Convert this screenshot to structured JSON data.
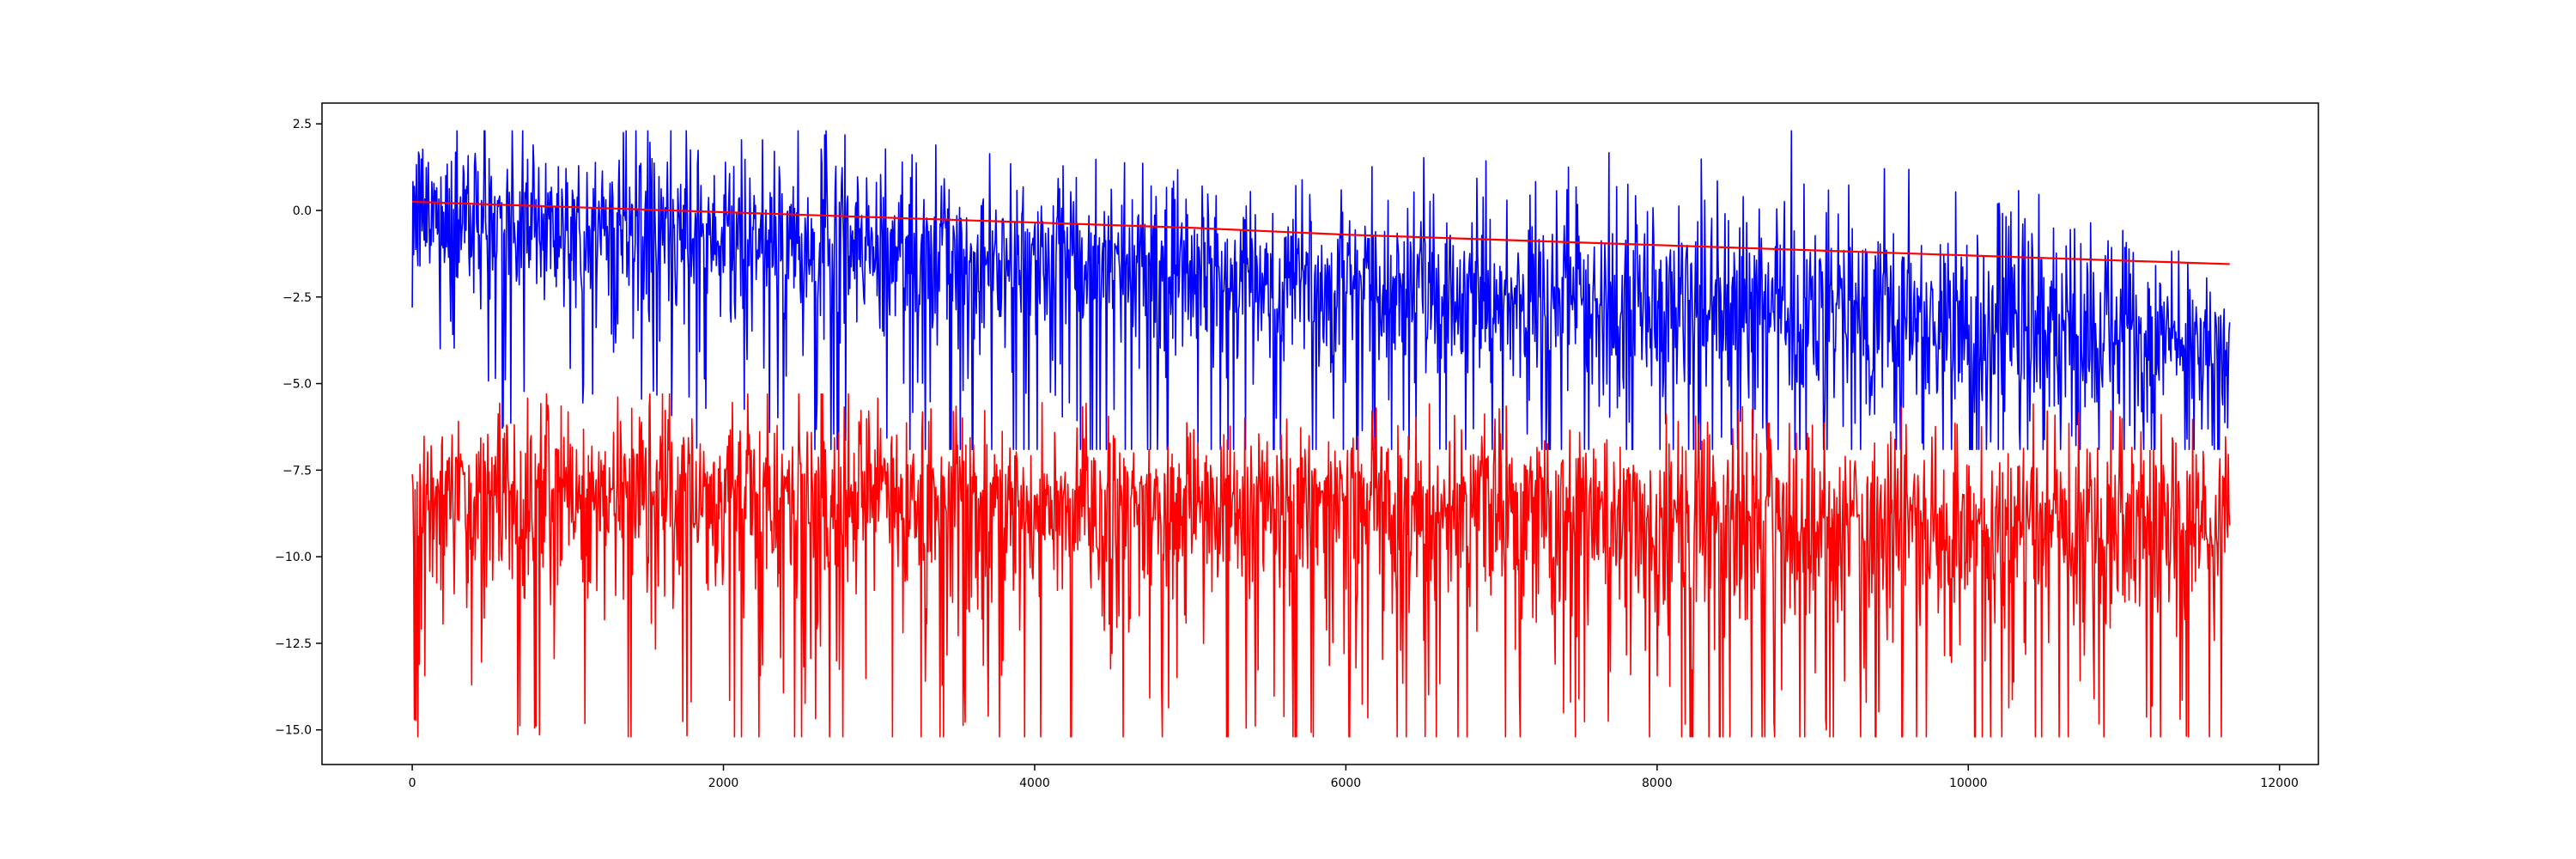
{
  "chart_data": {
    "type": "line",
    "title": "",
    "xlabel": "",
    "ylabel": "",
    "xlim": [
      -580,
      12250
    ],
    "ylim": [
      -16.0,
      3.1
    ],
    "grid": false,
    "legend": "none",
    "xticks": [
      0,
      2000,
      4000,
      6000,
      8000,
      10000,
      12000
    ],
    "xtick_labels": [
      "0",
      "2000",
      "4000",
      "6000",
      "8000",
      "10000",
      "12000"
    ],
    "yticks": [
      2.5,
      0.0,
      -2.5,
      -5.0,
      -7.5,
      -10.0,
      -12.5,
      -15.0
    ],
    "ytick_labels": [
      "2.5",
      "0.0",
      "−2.5",
      "−5.0",
      "−7.5",
      "−10.0",
      "−12.5",
      "−15.0"
    ],
    "series": [
      {
        "color": "#0000ff",
        "style": "noisy",
        "x_range": [
          0,
          11680
        ],
        "approx_mean": [
          [
            0,
            0.0
          ],
          [
            2000,
            -0.8
          ],
          [
            4000,
            -1.4
          ],
          [
            6000,
            -2.1
          ],
          [
            8000,
            -2.8
          ],
          [
            10000,
            -3.3
          ],
          [
            11680,
            -3.7
          ]
        ],
        "approx_band": [
          [
            0,
            -2.5,
            2.3
          ],
          [
            2000,
            -3.5,
            1.9
          ],
          [
            4000,
            -4.8,
            0.7
          ],
          [
            6000,
            -5.4,
            0.5
          ],
          [
            8000,
            -6.0,
            0.3
          ],
          [
            10000,
            -6.3,
            0.0
          ],
          [
            11680,
            -7.0,
            -2.2
          ]
        ],
        "approx_min": -6.9,
        "approx_max": 2.3
      },
      {
        "color": "#ff0000",
        "style": "noisy",
        "x_range": [
          0,
          11680
        ],
        "approx_mean": [
          [
            0,
            -8.3
          ],
          [
            2000,
            -8.1
          ],
          [
            4000,
            -8.6
          ],
          [
            6000,
            -8.4
          ],
          [
            8000,
            -8.9
          ],
          [
            10000,
            -9.1
          ],
          [
            11680,
            -8.9
          ]
        ],
        "approx_band": [
          [
            0,
            -11.5,
            -6.2
          ],
          [
            2000,
            -12.0,
            -5.4
          ],
          [
            4000,
            -12.5,
            -6.4
          ],
          [
            6000,
            -12.2,
            -6.3
          ],
          [
            8000,
            -12.8,
            -6.5
          ],
          [
            10000,
            -13.2,
            -6.6
          ],
          [
            11680,
            -12.0,
            -6.5
          ]
        ],
        "approx_min": -15.2,
        "approx_max": -5.3
      },
      {
        "color": "#ff0000",
        "style": "smooth",
        "x": [
          0,
          1000,
          2000,
          3000,
          4000,
          5000,
          6000,
          7000,
          8000,
          9000,
          10000,
          11000,
          11680
        ],
        "y": [
          0.25,
          0.1,
          -0.05,
          -0.2,
          -0.35,
          -0.5,
          -0.7,
          -0.85,
          -1.0,
          -1.15,
          -1.3,
          -1.45,
          -1.55
        ]
      }
    ]
  }
}
